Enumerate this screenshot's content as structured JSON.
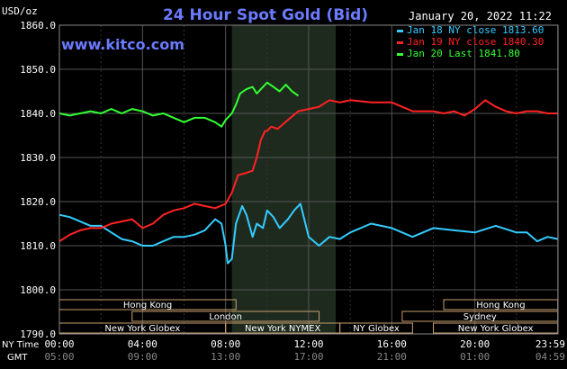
{
  "header": {
    "title": "24 Hour Spot Gold (Bid)",
    "timestamp": "January 20, 2022 11:22",
    "watermark": "www.kitco.com",
    "unit_label": "USD/oz"
  },
  "legend": [
    {
      "label": "Jan 18 NY close 1813.60",
      "color": "#33ccff"
    },
    {
      "label": "Jan 19 NY close 1840.30",
      "color": "#ff2222"
    },
    {
      "label": "Jan 20 Last 1841.80",
      "color": "#33ff33"
    }
  ],
  "time_axis": {
    "ny_row_label": "NY Time",
    "gmt_row_label": "GMT",
    "ny_ticks": [
      "00:00",
      "04:00",
      "08:00",
      "12:00",
      "16:00",
      "20:00",
      "23:59"
    ],
    "gmt_ticks": [
      "05:00",
      "09:00",
      "13:00",
      "17:00",
      "21:00",
      "01:00",
      "04:59"
    ]
  },
  "sessions": [
    {
      "label": "Hong Kong",
      "row": 0,
      "start": 0,
      "end": 8.5
    },
    {
      "label": "Hong Kong",
      "row": 0,
      "start": 18.5,
      "end": 23.99
    },
    {
      "label": "London",
      "row": 1,
      "start": 3.5,
      "end": 12.5
    },
    {
      "label": "Sydney",
      "row": 1,
      "start": 16.5,
      "end": 23.99
    },
    {
      "label": "New York Globex",
      "row": 2,
      "start": 0,
      "end": 8
    },
    {
      "label": "New York NYMEX",
      "row": 2,
      "start": 8,
      "end": 13.5
    },
    {
      "label": "NY Globex",
      "row": 2,
      "start": 13.5,
      "end": 17
    },
    {
      "label": "New York Globex",
      "row": 2,
      "start": 18,
      "end": 23.99
    }
  ],
  "chart_data": {
    "type": "line",
    "title": "24 Hour Spot Gold (Bid)",
    "ylabel": "USD/oz",
    "ylim": [
      1790,
      1860
    ],
    "yticks": [
      "1860.0",
      "1850.0",
      "1840.0",
      "1830.0",
      "1820.0",
      "1810.0",
      "1800.0",
      "1790.0"
    ],
    "xlim": [
      0,
      24
    ],
    "highlight": [
      8.3,
      13.3
    ],
    "series": [
      {
        "name": "Jan 18 NY close 1813.60",
        "color": "#33ccff",
        "x": [
          0,
          0.5,
          1,
          1.5,
          2,
          2.5,
          3,
          3.5,
          4,
          4.5,
          5,
          5.5,
          6,
          6.5,
          7,
          7.5,
          7.8,
          8,
          8.1,
          8.3,
          8.5,
          8.8,
          9,
          9.3,
          9.5,
          9.8,
          10,
          10.3,
          10.6,
          11,
          11.3,
          11.6,
          12,
          12.5,
          13,
          13.5,
          14,
          15,
          16,
          17,
          18,
          19,
          20,
          21,
          22,
          22.5,
          23,
          23.5,
          23.99
        ],
        "y": [
          1817,
          1816.5,
          1815.5,
          1814.5,
          1814.5,
          1813,
          1811.5,
          1811,
          1810,
          1810,
          1811,
          1812,
          1812,
          1812.5,
          1813.5,
          1816,
          1815,
          1810,
          1806,
          1807,
          1815,
          1819,
          1817,
          1812,
          1815,
          1814,
          1818,
          1816.5,
          1814,
          1816,
          1818,
          1819.5,
          1812,
          1810,
          1812,
          1811.5,
          1813,
          1815,
          1814,
          1812,
          1814,
          1813.5,
          1813,
          1814.5,
          1813,
          1813,
          1811,
          1812,
          1811.5
        ]
      },
      {
        "name": "Jan 19 NY close 1840.30",
        "color": "#ff2222",
        "x": [
          0,
          0.5,
          1,
          1.5,
          2,
          2.5,
          3,
          3.5,
          4,
          4.5,
          5,
          5.5,
          6,
          6.5,
          7,
          7.5,
          8,
          8.3,
          8.6,
          9,
          9.3,
          9.5,
          9.7,
          9.9,
          10,
          10.2,
          10.5,
          11,
          11.5,
          12,
          12.5,
          13,
          13.5,
          14,
          15,
          16,
          17,
          18,
          18.5,
          19,
          19.5,
          20,
          20.5,
          21,
          21.5,
          22,
          22.5,
          23,
          23.5,
          23.99
        ],
        "y": [
          1811,
          1812.5,
          1813.5,
          1814,
          1814,
          1815,
          1815.5,
          1816,
          1814,
          1815,
          1817,
          1818,
          1818.5,
          1819.5,
          1819,
          1818.5,
          1819.5,
          1822,
          1826,
          1826.5,
          1827,
          1830,
          1834,
          1836,
          1836,
          1837,
          1836.5,
          1838.5,
          1840.5,
          1841,
          1841.5,
          1843,
          1842.5,
          1843,
          1842.5,
          1842.5,
          1840.5,
          1840.5,
          1840,
          1840.5,
          1839.5,
          1841,
          1843,
          1841.5,
          1840.5,
          1840,
          1840.5,
          1840.5,
          1840,
          1840
        ]
      },
      {
        "name": "Jan 20 Last 1841.80",
        "color": "#33ff33",
        "x": [
          0,
          0.5,
          1,
          1.5,
          2,
          2.5,
          3,
          3.5,
          4,
          4.5,
          5,
          5.5,
          6,
          6.5,
          7,
          7.5,
          7.8,
          8,
          8.3,
          8.5,
          8.7,
          9,
          9.3,
          9.5,
          9.8,
          10,
          10.3,
          10.6,
          10.9,
          11.2,
          11.5
        ],
        "y": [
          1840,
          1839.5,
          1840,
          1840.5,
          1840,
          1841,
          1840,
          1841,
          1840.5,
          1839.5,
          1840,
          1839,
          1838,
          1839,
          1839,
          1838,
          1837,
          1838.5,
          1840,
          1842,
          1844.5,
          1845.5,
          1846,
          1844.5,
          1846,
          1847,
          1846,
          1845,
          1846.5,
          1845,
          1844
        ]
      }
    ]
  }
}
